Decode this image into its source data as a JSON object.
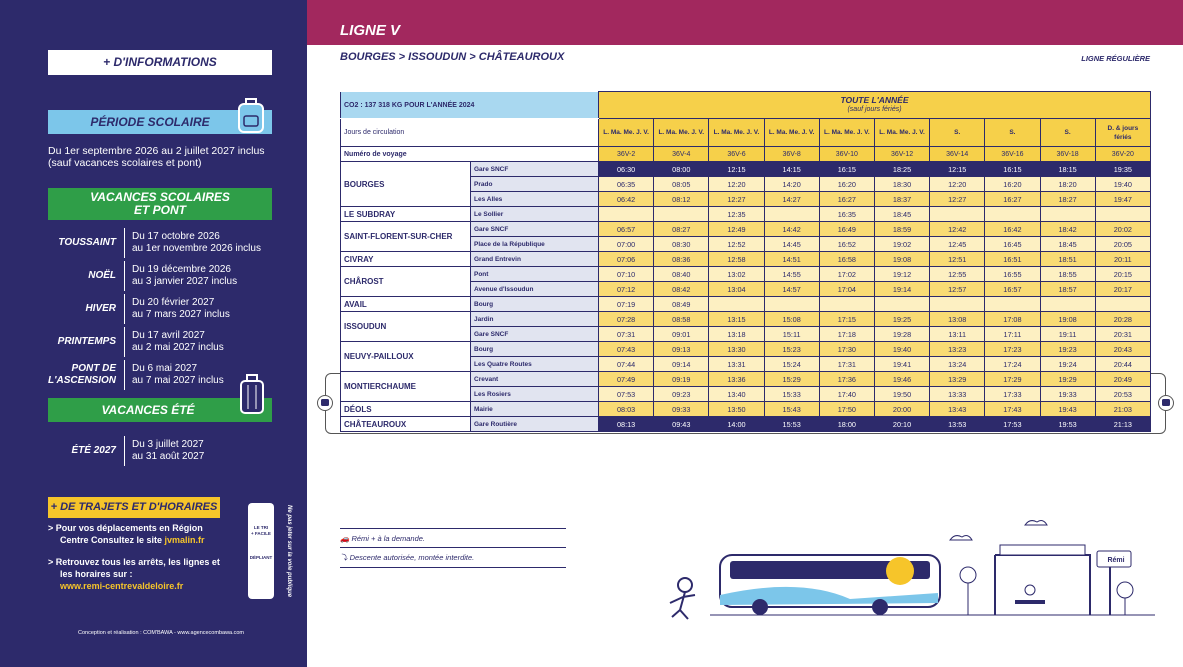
{
  "sidebar": {
    "info_title": "+ D'INFORMATIONS",
    "school_title": "PÉRIODE SCOLAIRE",
    "school_text": [
      "Du 1er septembre 2026 au 2 juillet 2027 inclus",
      "(sauf vacances scolaires et pont)"
    ],
    "holidays_title": [
      "VACANCES SCOLAIRES",
      "ET PONT"
    ],
    "holidays": [
      {
        "name": "TOUSSAINT",
        "lines": [
          "Du 17 octobre 2026",
          "au 1er novembre 2026 inclus"
        ]
      },
      {
        "name": "NOËL",
        "lines": [
          "Du 19 décembre 2026",
          "au 3 janvier 2027 inclus"
        ]
      },
      {
        "name": "HIVER",
        "lines": [
          "Du 20 février 2027",
          "au 7 mars 2027 inclus"
        ]
      },
      {
        "name": "PRINTEMPS",
        "lines": [
          "Du 17 avril 2027",
          "au 2 mai 2027 inclus"
        ]
      },
      {
        "name": "PONT DE L'ASCENSION",
        "lines": [
          "Du 6 mai 2027",
          "au 7 mai 2027 inclus"
        ]
      }
    ],
    "summer_title": "VACANCES ÉTÉ",
    "summer": {
      "name": "ÉTÉ 2027",
      "lines": [
        "Du 3 juillet 2027",
        "au 31 août 2027"
      ]
    },
    "more_title": "+ DE TRAJETS ET D'HORAIRES",
    "links": [
      {
        "text": "Pour vos déplacements en Région Centre Consultez le site",
        "link": "jvmalin.fr"
      },
      {
        "text": "Retrouvez tous les arrêts, les lignes et les horaires sur :",
        "link": "www.remi-centrevaldeloire.fr"
      }
    ],
    "tri_badge": [
      "LE TRI",
      "+ FACILE",
      "DÉPLIANT"
    ],
    "vertical_note": "Ne pas jeter sur la voie publique",
    "credits": "Conception et réalisation : COM'BAWA - www.agencecombawa.com"
  },
  "header": {
    "line": "LIGNE V",
    "route": "BOURGES > ISSOUDUN > CHÂTEAUROUX",
    "line_type": "LIGNE RÉGULIÈRE"
  },
  "timetable": {
    "co2": "CO2 : 137 318 KG POUR L'ANNÉE 2024",
    "period": "TOUTE L'ANNÉE",
    "period_note": "(sauf jours fériés)",
    "days_label": "Jours de circulation",
    "days": [
      "L. Ma. Me. J. V.",
      "L. Ma. Me. J. V.",
      "L. Ma. Me. J. V.",
      "L. Ma. Me. J. V.",
      "L. Ma. Me. J. V.",
      "L. Ma. Me. J. V.",
      "S.",
      "S.",
      "S.",
      "D. & jours fériés"
    ],
    "trip_label": "Numéro de voyage",
    "trips": [
      "36V-2",
      "36V-4",
      "36V-6",
      "36V-8",
      "36V-10",
      "36V-12",
      "36V-14",
      "36V-16",
      "36V-18",
      "36V-20"
    ],
    "towns": [
      {
        "town": "BOURGES",
        "stops": [
          {
            "stop": "Gare SNCF",
            "times": [
              "06:30",
              "08:00",
              "12:15",
              "14:15",
              "16:15",
              "18:25",
              "12:15",
              "16:15",
              "18:15",
              "19:35"
            ]
          },
          {
            "stop": "Prado",
            "times": [
              "06:35",
              "08:05",
              "12:20",
              "14:20",
              "16:20",
              "18:30",
              "12:20",
              "16:20",
              "18:20",
              "19:40"
            ]
          },
          {
            "stop": "Les Alles",
            "times": [
              "06:42",
              "08:12",
              "12:27",
              "14:27",
              "16:27",
              "18:37",
              "12:27",
              "16:27",
              "18:27",
              "19:47"
            ]
          }
        ]
      },
      {
        "town": "LE SUBDRAY",
        "stops": [
          {
            "stop": "Le Sollier",
            "times": [
              null,
              null,
              "12:35",
              null,
              "16:35",
              "18:45",
              null,
              null,
              null,
              null
            ]
          }
        ]
      },
      {
        "town": "SAINT-FLORENT-SUR-CHER",
        "stops": [
          {
            "stop": "Gare SNCF",
            "times": [
              "06:57",
              "08:27",
              "12:49",
              "14:42",
              "16:49",
              "18:59",
              "12:42",
              "16:42",
              "18:42",
              "20:02"
            ]
          },
          {
            "stop": "Place de la République",
            "times": [
              "07:00",
              "08:30",
              "12:52",
              "14:45",
              "16:52",
              "19:02",
              "12:45",
              "16:45",
              "18:45",
              "20:05"
            ]
          }
        ]
      },
      {
        "town": "CIVRAY",
        "stops": [
          {
            "stop": "Grand Entrevin",
            "times": [
              "07:06",
              "08:36",
              "12:58",
              "14:51",
              "16:58",
              "19:08",
              "12:51",
              "16:51",
              "18:51",
              "20:11"
            ]
          }
        ]
      },
      {
        "town": "CHÂROST",
        "stops": [
          {
            "stop": "Pont",
            "times": [
              "07:10",
              "08:40",
              "13:02",
              "14:55",
              "17:02",
              "19:12",
              "12:55",
              "16:55",
              "18:55",
              "20:15"
            ]
          },
          {
            "stop": "Avenue d'Issoudun",
            "times": [
              "07:12",
              "08:42",
              "13:04",
              "14:57",
              "17:04",
              "19:14",
              "12:57",
              "16:57",
              "18:57",
              "20:17"
            ]
          }
        ]
      },
      {
        "town": "AVAIL",
        "stops": [
          {
            "stop": "Bourg",
            "times": [
              "07:19",
              "08:49",
              null,
              null,
              null,
              null,
              null,
              null,
              null,
              null
            ]
          }
        ]
      },
      {
        "town": "ISSOUDUN",
        "stops": [
          {
            "stop": "Jardin",
            "times": [
              "07:28",
              "08:58",
              "13:15",
              "15:08",
              "17:15",
              "19:25",
              "13:08",
              "17:08",
              "19:08",
              "20:28"
            ]
          },
          {
            "stop": "Gare SNCF",
            "times": [
              "07:31",
              "09:01",
              "13:18",
              "15:11",
              "17:18",
              "19:28",
              "13:11",
              "17:11",
              "19:11",
              "20:31"
            ]
          }
        ]
      },
      {
        "town": "NEUVY-PAILLOUX",
        "stops": [
          {
            "stop": "Bourg",
            "times": [
              "07:43",
              "09:13",
              "13:30",
              "15:23",
              "17:30",
              "19:40",
              "13:23",
              "17:23",
              "19:23",
              "20:43"
            ]
          },
          {
            "stop": "Les Quatre Routes",
            "times": [
              "07:44",
              "09:14",
              "13:31",
              "15:24",
              "17:31",
              "19:41",
              "13:24",
              "17:24",
              "19:24",
              "20:44"
            ]
          }
        ]
      },
      {
        "town": "MONTIERCHAUME",
        "stops": [
          {
            "stop": "Crevant",
            "times": [
              "07:49",
              "09:19",
              "13:36",
              "15:29",
              "17:36",
              "19:46",
              "13:29",
              "17:29",
              "19:29",
              "20:49"
            ]
          },
          {
            "stop": "Les Rosiers",
            "times": [
              "07:53",
              "09:23",
              "13:40",
              "15:33",
              "17:40",
              "19:50",
              "13:33",
              "17:33",
              "19:33",
              "20:53"
            ]
          }
        ]
      },
      {
        "town": "DÉOLS",
        "stops": [
          {
            "stop": "Mairie",
            "times": [
              "08:03",
              "09:33",
              "13:50",
              "15:43",
              "17:50",
              "20:00",
              "13:43",
              "17:43",
              "19:43",
              "21:03"
            ]
          }
        ]
      },
      {
        "town": "CHÂTEAUROUX",
        "stops": [
          {
            "stop": "Gare Routière",
            "times": [
              "08:13",
              "09:43",
              "14:00",
              "15:53",
              "18:00",
              "20:10",
              "13:53",
              "17:53",
              "19:53",
              "21:13"
            ]
          }
        ]
      }
    ]
  },
  "legend": [
    "Rémi + à la demande.",
    "Descente autorisée, montée interdite."
  ],
  "sign": "Rémi"
}
